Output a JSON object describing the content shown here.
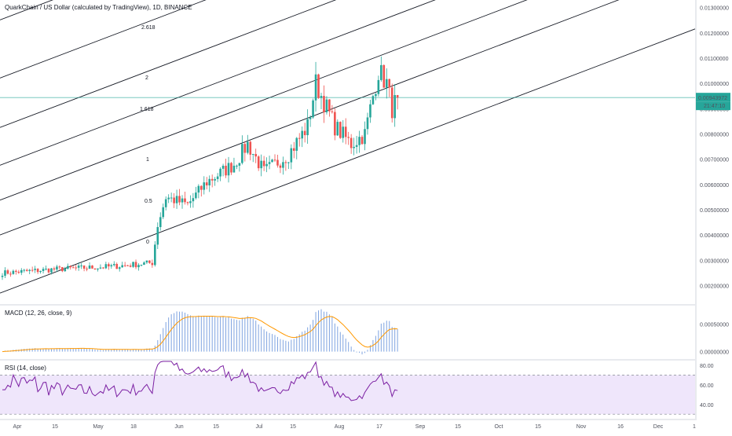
{
  "header": {
    "title": "QuarkChain / US Dollar (calculated by TradingView), 1D, BINANCE"
  },
  "colors": {
    "up": "#26a69a",
    "down": "#ef5350",
    "price_line": "#26a69a",
    "macd_line": "#2962ff",
    "signal_line": "#ff9800",
    "histogram": "#7ea3e0",
    "rsi_line": "#7b1fa2",
    "rsi_band": "#efe6fb",
    "pitchfork": "#131722"
  },
  "price_badges": {
    "last_price": "0.00943972",
    "countdown": "21:47:10"
  },
  "chart_data": [
    {
      "type": "candlestick",
      "title": "QuarkChain / US Dollar (calculated by TradingView), 1D, BINANCE",
      "x_labels": [
        "Apr",
        "15",
        "May",
        "18",
        "Jun",
        "15",
        "Jul",
        "15",
        "Aug",
        "17",
        "Sep",
        "15",
        "Oct",
        "15",
        "Nov",
        "16",
        "Dec",
        "1"
      ],
      "y_labels": [
        "0.01300000",
        "0.01200000",
        "0.01100000",
        "0.01000000",
        "0.00900000",
        "0.00800000",
        "0.00700000",
        "0.00600000",
        "0.00500000",
        "0.00400000",
        "0.00300000",
        "0.00200000"
      ],
      "ylim": [
        0.0013,
        0.0133
      ],
      "last_price": 0.00943972,
      "close_anchors": [
        [
          0,
          0.0025
        ],
        [
          20,
          0.00265
        ],
        [
          40,
          0.00275
        ],
        [
          55,
          0.0029
        ],
        [
          57,
          0.0044
        ],
        [
          60,
          0.0055
        ],
        [
          68,
          0.0052
        ],
        [
          75,
          0.0061
        ],
        [
          85,
          0.0068
        ],
        [
          90,
          0.0076
        ],
        [
          96,
          0.0065
        ],
        [
          105,
          0.0072
        ],
        [
          112,
          0.0083
        ],
        [
          115,
          0.01
        ],
        [
          122,
          0.0083
        ],
        [
          128,
          0.0076
        ],
        [
          133,
          0.008
        ],
        [
          138,
          0.0105
        ],
        [
          141,
          0.01
        ],
        [
          143,
          0.009
        ],
        [
          145,
          0.00944
        ]
      ],
      "fib_levels": [
        "2.618",
        "2",
        "1.618",
        "1",
        "0.5",
        "0"
      ]
    },
    {
      "type": "bar",
      "title": "MACD (12, 26, close, 9)",
      "y_labels": [
        "0.00050000",
        "0.00000000"
      ],
      "ylim": [
        -0.00012,
        0.00082
      ]
    },
    {
      "type": "line",
      "title": "RSI (14, close)",
      "y_labels": [
        "80.00",
        "60.00",
        "40.00"
      ],
      "ylim": [
        27,
        84
      ],
      "band": [
        30,
        70
      ]
    }
  ]
}
